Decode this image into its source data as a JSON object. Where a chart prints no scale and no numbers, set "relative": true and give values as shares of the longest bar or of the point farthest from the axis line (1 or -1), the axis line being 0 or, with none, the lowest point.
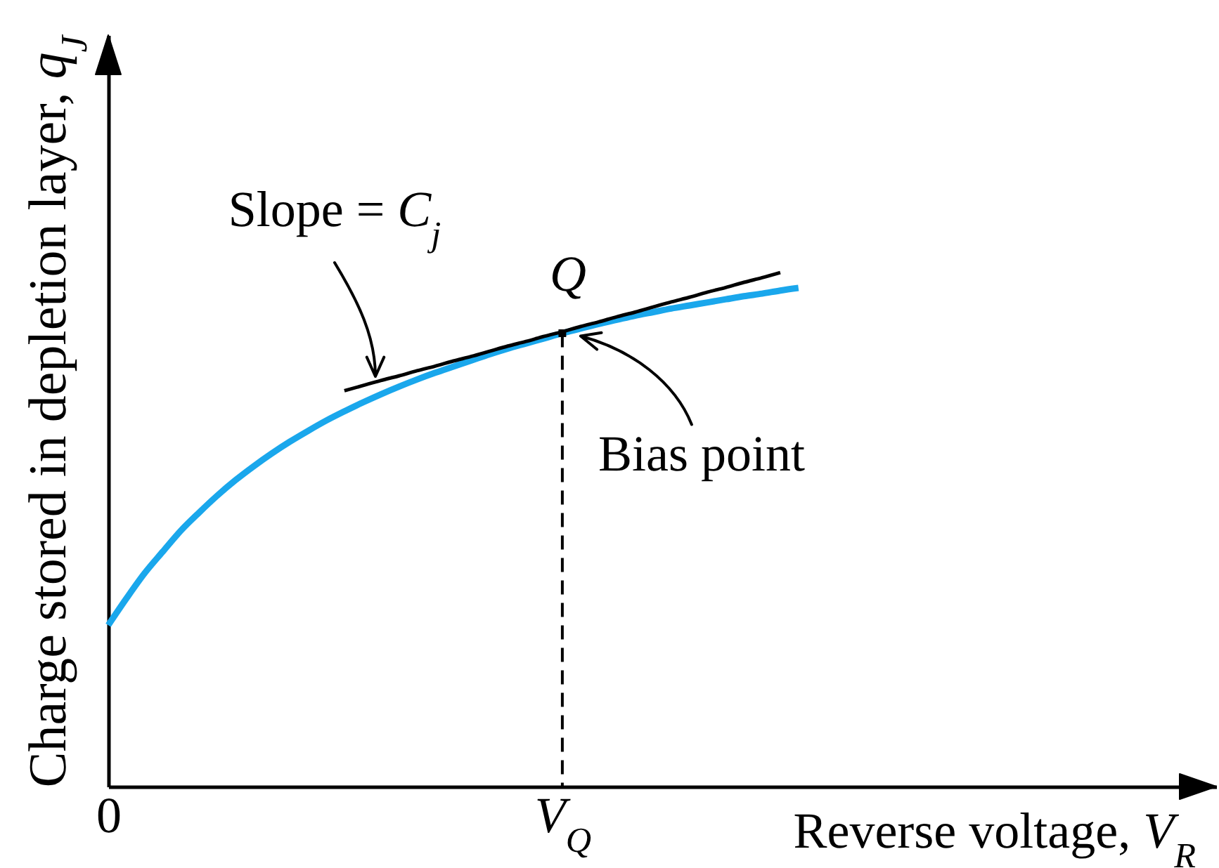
{
  "chart_data": {
    "type": "line",
    "xlabel": "Reverse voltage, V$_{R}$",
    "ylabel": "Charge stored in depletion layer, q$_{J}$",
    "relative": true,
    "categories": [
      "0",
      null,
      null,
      null,
      null,
      null,
      null,
      null,
      null,
      null,
      null,
      null,
      null,
      null,
      null,
      null,
      null,
      null,
      null,
      null,
      null,
      null,
      null,
      null,
      null,
      "V$_{Q}$",
      null,
      null,
      null,
      null,
      null,
      null,
      null,
      null,
      null,
      null,
      null,
      null,
      null,
      null,
      null,
      null,
      null,
      null,
      null,
      null,
      null,
      null,
      null,
      null,
      null,
      null,
      null,
      null,
      null,
      null,
      null,
      null,
      null,
      null,
      null,
      null
    ],
    "series": [
      {
        "color": "#1aa7ec",
        "values": [
          0.314,
          0.366,
          0.415,
          0.457,
          0.498,
          0.533,
          0.566,
          0.596,
          0.623,
          0.648,
          0.671,
          0.692,
          0.712,
          0.73,
          0.747,
          0.763,
          0.778,
          0.792,
          0.805,
          0.817,
          0.829,
          0.841,
          0.852,
          0.862,
          0.872,
          0.882,
          0.891,
          0.9,
          0.908,
          0.916,
          0.923,
          0.93,
          0.936,
          0.942,
          0.948,
          0.954,
          0.959,
          0.965,
          0.97,
          null,
          null,
          null,
          null,
          null,
          null,
          null,
          null,
          null,
          null,
          null,
          null,
          null,
          null,
          null,
          null,
          null,
          null,
          null,
          null,
          null,
          null,
          null
        ]
      },
      {
        "color": "#000000",
        "values": [
          null,
          null,
          null,
          null,
          null,
          null,
          null,
          null,
          null,
          null,
          null,
          null,
          null,
          0.77,
          0.78,
          0.79,
          0.799,
          0.809,
          0.818,
          0.828,
          0.837,
          0.847,
          0.857,
          0.866,
          0.876,
          0.885,
          0.895,
          0.904,
          0.914,
          0.923,
          0.933,
          0.943,
          0.952,
          0.962,
          0.971,
          0.981,
          0.99,
          1,
          null,
          null,
          null,
          null,
          null,
          null,
          null,
          null,
          null,
          null,
          null,
          null,
          null,
          null,
          null,
          null,
          null,
          null,
          null,
          null,
          null,
          null,
          null,
          null
        ]
      },
      {
        "type": "lollipop",
        "color": "#000000",
        "line_style": "dashed",
        "marker": "square",
        "values": [
          null,
          null,
          null,
          null,
          null,
          null,
          null,
          null,
          null,
          null,
          null,
          null,
          null,
          null,
          null,
          null,
          null,
          null,
          null,
          null,
          null,
          null,
          null,
          null,
          null,
          0.882,
          null,
          null,
          null,
          null,
          null,
          null,
          null,
          null,
          null,
          null,
          null,
          null,
          null,
          null,
          null,
          null,
          null,
          null,
          null,
          null,
          null,
          null,
          null,
          null,
          null,
          null,
          null,
          null,
          null,
          null,
          null,
          null,
          null,
          null,
          null,
          null
        ]
      }
    ],
    "annotations": [
      "Slope = C$_{j}$",
      {
        "text": "Q",
        "x": "V$_{Q}$",
        "y": 0.882
      },
      {
        "text": "Bias point",
        "x": "V$_{Q}$",
        "y": 0.882
      }
    ]
  }
}
